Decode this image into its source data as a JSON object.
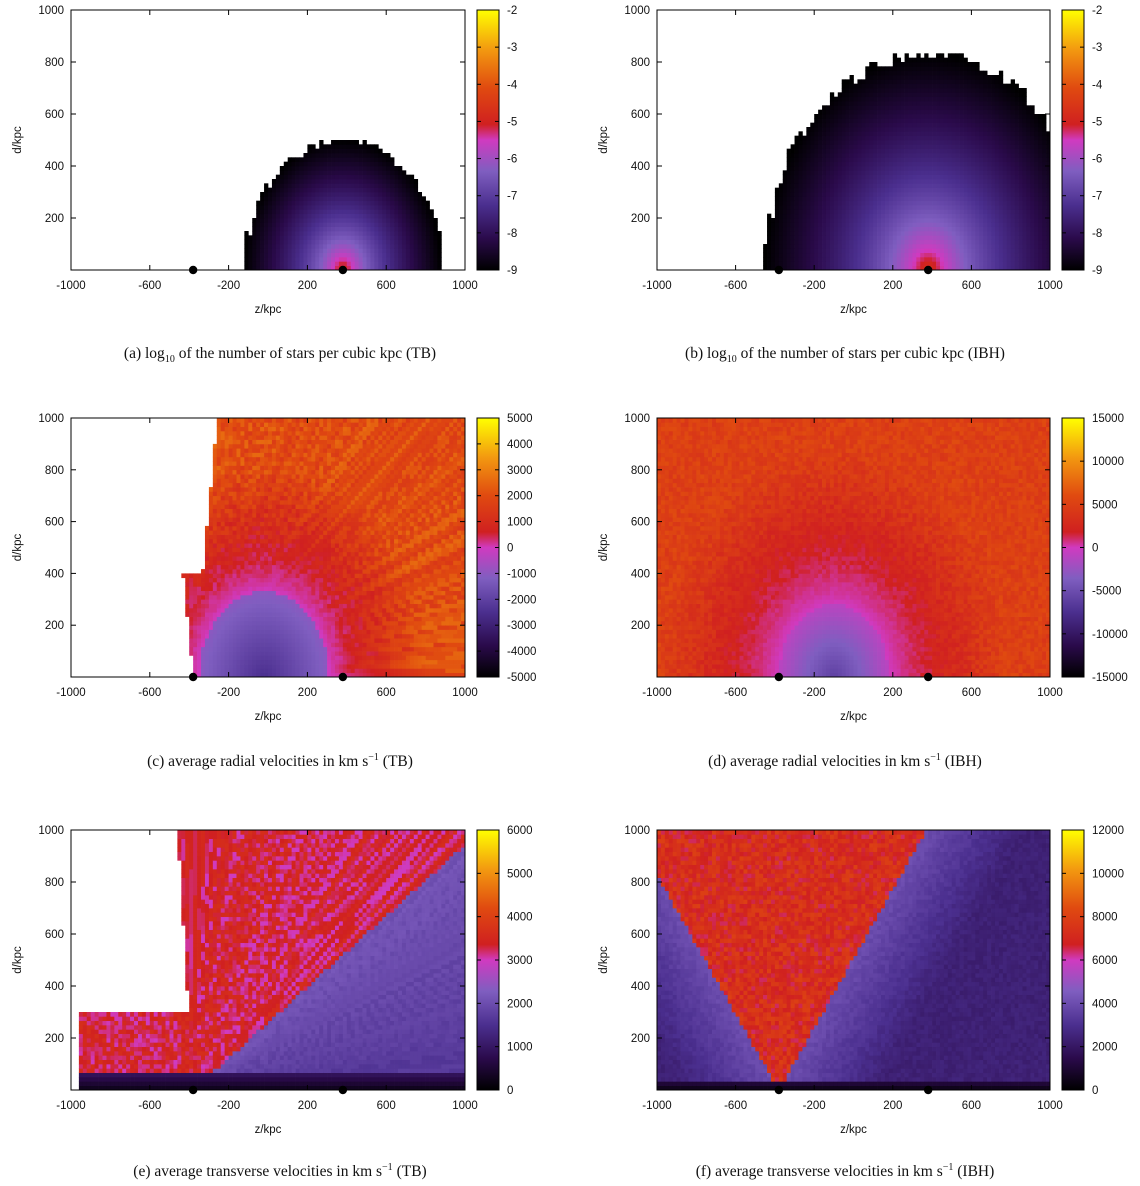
{
  "chart_data": [
    {
      "id": "a",
      "type": "heatmap",
      "caption": {
        "pre": "(a) log",
        "sub": "10",
        "post": " of the number of stars per cubic kpc (TB)"
      },
      "xlabel": "z/kpc",
      "ylabel": "d/kpc",
      "xlim": [
        -1000,
        1000
      ],
      "ylim": [
        0,
        1000
      ],
      "x_ticks": [
        "-1000",
        "-600",
        "-200",
        "200",
        "600",
        "1000"
      ],
      "y_ticks": [
        "200",
        "400",
        "600",
        "800",
        "1000"
      ],
      "colorbar": {
        "min": -9,
        "max": -2,
        "ticks": [
          "-2",
          "-3",
          "-4",
          "-5",
          "-6",
          "-7",
          "-8",
          "-9"
        ]
      },
      "markers_z": [
        -380,
        380
      ],
      "field": {
        "kind": "density",
        "center_z": 380,
        "radius": 500,
        "core_value": -4.2,
        "edge_value": -9
      }
    },
    {
      "id": "b",
      "type": "heatmap",
      "caption": {
        "pre": "(b) log",
        "sub": "10",
        "post": " of the number of stars per cubic kpc (IBH)"
      },
      "xlabel": "z/kpc",
      "ylabel": "d/kpc",
      "xlim": [
        -1000,
        1000
      ],
      "ylim": [
        0,
        1000
      ],
      "x_ticks": [
        "-1000",
        "-600",
        "-200",
        "200",
        "600",
        "1000"
      ],
      "y_ticks": [
        "200",
        "400",
        "600",
        "800",
        "1000"
      ],
      "colorbar": {
        "min": -9,
        "max": -2,
        "ticks": [
          "-2",
          "-3",
          "-4",
          "-5",
          "-6",
          "-7",
          "-8",
          "-9"
        ]
      },
      "markers_z": [
        -380,
        380
      ],
      "field": {
        "kind": "density",
        "center_z": 380,
        "radius": 830,
        "core_value": -4.2,
        "edge_value": -9
      }
    },
    {
      "id": "c",
      "type": "heatmap",
      "caption": {
        "pre": "(c) average radial velocities in km s",
        "sup": "−1",
        "post": " (TB)"
      },
      "xlabel": "z/kpc",
      "ylabel": "d/kpc",
      "xlim": [
        -1000,
        1000
      ],
      "ylim": [
        0,
        1000
      ],
      "x_ticks": [
        "-1000",
        "-600",
        "-200",
        "200",
        "600",
        "1000"
      ],
      "y_ticks": [
        "200",
        "400",
        "600",
        "800",
        "1000"
      ],
      "colorbar": {
        "min": -5000,
        "max": 5000,
        "ticks": [
          "5000",
          "4000",
          "3000",
          "2000",
          "1000",
          "0",
          "-1000",
          "-2000",
          "-3000",
          "-4000",
          "-5000"
        ]
      },
      "markers_z": [
        -380,
        380
      ],
      "field": {
        "kind": "radial_tb",
        "center_z": -20,
        "inner_radius": 330,
        "inner_value": -2500,
        "outer_value": 2000
      }
    },
    {
      "id": "d",
      "type": "heatmap",
      "caption": {
        "pre": "(d) average radial velocities in km s",
        "sup": "−1",
        "post": " (IBH)"
      },
      "xlabel": "z/kpc",
      "ylabel": "d/kpc",
      "xlim": [
        -1000,
        1000
      ],
      "ylim": [
        0,
        1000
      ],
      "x_ticks": [
        "-1000",
        "-600",
        "-200",
        "200",
        "600",
        "1000"
      ],
      "y_ticks": [
        "200",
        "400",
        "600",
        "800",
        "1000"
      ],
      "colorbar": {
        "min": -15000,
        "max": 15000,
        "ticks": [
          "15000",
          "10000",
          "5000",
          "0",
          "-5000",
          "-10000",
          "-15000"
        ]
      },
      "markers_z": [
        -380,
        380
      ],
      "field": {
        "kind": "radial_ibh",
        "center_z": -100,
        "inner_radius": 280,
        "inner_value": -6000,
        "outer_value": 5000
      }
    },
    {
      "id": "e",
      "type": "heatmap",
      "caption": {
        "pre": "(e) average transverse velocities in km s",
        "sup": "−1",
        "post": " (TB)"
      },
      "xlabel": "z/kpc",
      "ylabel": "d/kpc",
      "xlim": [
        -1000,
        1000
      ],
      "ylim": [
        0,
        1000
      ],
      "x_ticks": [
        "-1000",
        "-600",
        "-200",
        "200",
        "600",
        "1000"
      ],
      "y_ticks": [
        "200",
        "400",
        "600",
        "800",
        "1000"
      ],
      "colorbar": {
        "min": 0,
        "max": 6000,
        "ticks": [
          "6000",
          "5000",
          "4000",
          "3000",
          "2000",
          "1000",
          "0"
        ]
      },
      "markers_z": [
        -380,
        380
      ],
      "field": {
        "kind": "transverse_tb",
        "apex_z": -380,
        "high_value": 3300,
        "low_value": 1600
      }
    },
    {
      "id": "f",
      "type": "heatmap",
      "caption": {
        "pre": "(f) average transverse velocities in km s",
        "sup": "−1",
        "post": " (IBH)"
      },
      "xlabel": "z/kpc",
      "ylabel": "d/kpc",
      "xlim": [
        -1000,
        1000
      ],
      "ylim": [
        0,
        1000
      ],
      "x_ticks": [
        "-1000",
        "-600",
        "-200",
        "200",
        "600",
        "1000"
      ],
      "y_ticks": [
        "200",
        "400",
        "600",
        "800",
        "1000"
      ],
      "colorbar": {
        "min": 0,
        "max": 12000,
        "ticks": [
          "12000",
          "10000",
          "8000",
          "6000",
          "4000",
          "2000",
          "0"
        ]
      },
      "markers_z": [
        -380,
        380
      ],
      "field": {
        "kind": "transverse_ibh",
        "apex_z": -380,
        "high_value": 7200,
        "low_value": 3200
      }
    }
  ]
}
